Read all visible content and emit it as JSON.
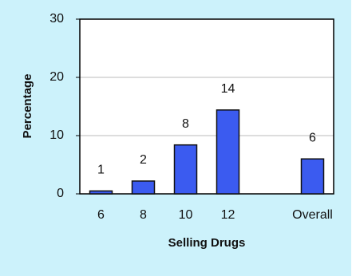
{
  "chart_data": {
    "type": "bar",
    "x_label": "Selling Drugs",
    "y_label": "Percentage",
    "categories": [
      "6",
      "8",
      "10",
      "12",
      null,
      "Overall"
    ],
    "values": [
      0.5,
      2.2,
      8.4,
      14.4,
      null,
      6.0
    ],
    "value_labels": [
      "1",
      "2",
      "8",
      "14",
      null,
      "6"
    ],
    "color": "#3b5bf0",
    "ylim": [
      0,
      30
    ],
    "yticks": [
      0,
      10,
      20,
      30
    ],
    "grid": true
  }
}
